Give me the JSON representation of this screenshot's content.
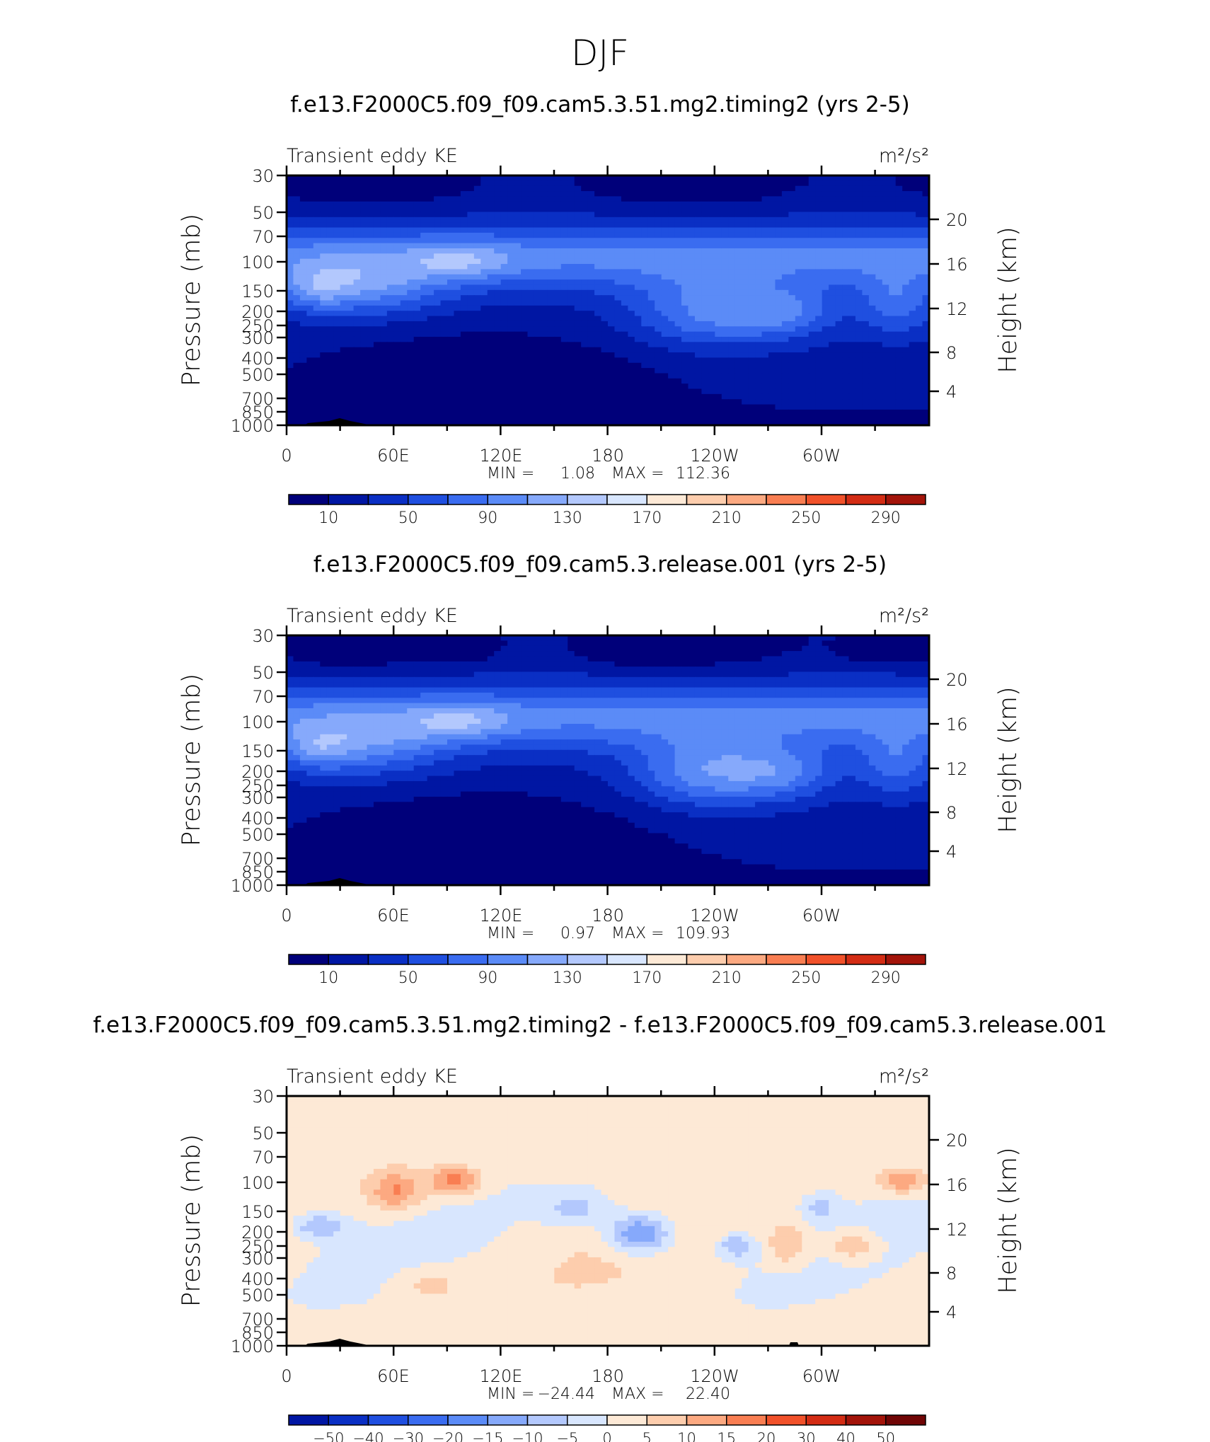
{
  "title": "DJF",
  "colors": {
    "abs": [
      "#00007a",
      "#0016a3",
      "#0a2fc4",
      "#1f4fe0",
      "#3a6cf0",
      "#5b8bf7",
      "#86a9fb",
      "#b3c8fd",
      "#d8e6fe",
      "#fde9d6",
      "#fdcdad",
      "#fca981",
      "#f97e52",
      "#f1512a",
      "#d32c14",
      "#a3140a",
      "#700505"
    ],
    "diff": [
      "#00007a",
      "#0016a3",
      "#0a2fc4",
      "#1f4fe0",
      "#3a6cf0",
      "#5b8bf7",
      "#86a9fb",
      "#b3c8fd",
      "#d8e6fe",
      "#fde9d6",
      "#fdcdad",
      "#fca981",
      "#f97e52",
      "#f1512a",
      "#d32c14",
      "#a3140a",
      "#700505"
    ]
  },
  "chart_data": [
    {
      "type": "heatmap",
      "title": "f.e13.F2000C5.f09_f09.cam5.3.51.mg2.timing2 (yrs 2-5)",
      "left_label": "Transient eddy KE",
      "units": "m²/s²",
      "ylabel": "Pressure (mb)",
      "ylabel_right": "Height (km)",
      "yticks": [
        "30",
        "50",
        "70",
        "100",
        "150",
        "200",
        "250",
        "300",
        "400",
        "500",
        "700",
        "850",
        "1000"
      ],
      "yticks_right": [
        "20",
        "16",
        "12",
        "8",
        "4"
      ],
      "xticks": [
        "0",
        "60E",
        "120E",
        "180",
        "120W",
        "60W"
      ],
      "stats": {
        "min_label": "MIN =",
        "min": "1.08",
        "max_label": "MAX =",
        "max": "112.36"
      },
      "colorbar_ticks": [
        "10",
        "50",
        "90",
        "130",
        "170",
        "210",
        "250",
        "290"
      ],
      "levels_min": 1.08,
      "levels_max": 112.36
    },
    {
      "type": "heatmap",
      "title": "f.e13.F2000C5.f09_f09.cam5.3.release.001 (yrs 2-5)",
      "left_label": "Transient eddy KE",
      "units": "m²/s²",
      "ylabel": "Pressure (mb)",
      "ylabel_right": "Height (km)",
      "yticks": [
        "30",
        "50",
        "70",
        "100",
        "150",
        "200",
        "250",
        "300",
        "400",
        "500",
        "700",
        "850",
        "1000"
      ],
      "yticks_right": [
        "20",
        "16",
        "12",
        "8",
        "4"
      ],
      "xticks": [
        "0",
        "60E",
        "120E",
        "180",
        "120W",
        "60W"
      ],
      "stats": {
        "min_label": "MIN =",
        "min": "0.97",
        "max_label": "MAX =",
        "max": "109.93"
      },
      "colorbar_ticks": [
        "10",
        "50",
        "90",
        "130",
        "170",
        "210",
        "250",
        "290"
      ],
      "levels_min": 0.97,
      "levels_max": 109.93
    },
    {
      "type": "heatmap",
      "title": "f.e13.F2000C5.f09_f09.cam5.3.51.mg2.timing2 - f.e13.F2000C5.f09_f09.cam5.3.release.001",
      "left_label": "Transient eddy KE",
      "units": "m²/s²",
      "ylabel": "Pressure (mb)",
      "ylabel_right": "Height (km)",
      "yticks": [
        "30",
        "50",
        "70",
        "100",
        "150",
        "200",
        "250",
        "300",
        "400",
        "500",
        "700",
        "850",
        "1000"
      ],
      "yticks_right": [
        "20",
        "16",
        "12",
        "8",
        "4"
      ],
      "xticks": [
        "0",
        "60E",
        "120E",
        "180",
        "120W",
        "60W"
      ],
      "stats": {
        "min_label": "MIN =",
        "min": "−24.44",
        "max_label": "MAX =",
        "max": "22.40"
      },
      "colorbar_ticks": [
        "−50",
        "−40",
        "−30",
        "−20",
        "−15",
        "−10",
        "−5",
        "0",
        "5",
        "10",
        "15",
        "20",
        "30",
        "40",
        "50"
      ],
      "levels_min": -24.44,
      "levels_max": 22.4
    }
  ]
}
